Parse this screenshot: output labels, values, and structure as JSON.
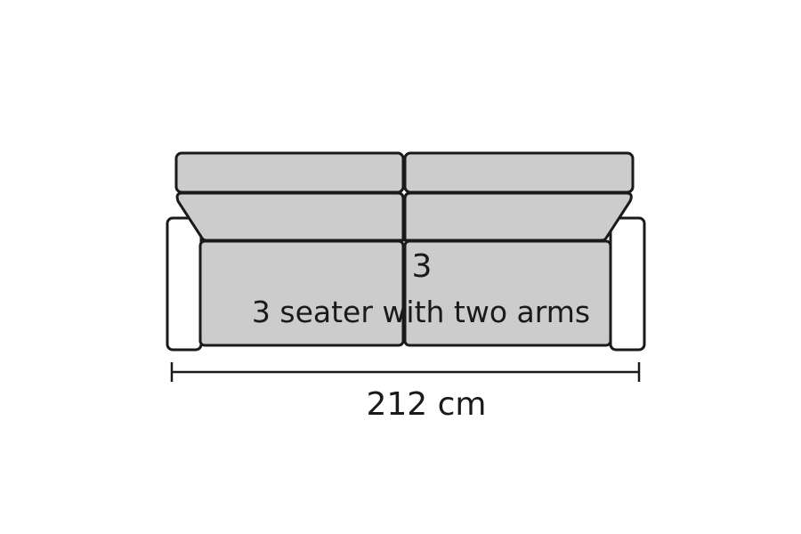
{
  "diagram": {
    "seat_count": "3",
    "description": "3 seater with two arms",
    "width_label": "212 cm"
  },
  "colors": {
    "cushion_fill": "#cccccc",
    "arm_fill": "#ffffff",
    "outline": "#1a1a1a",
    "text": "#1a1a1a"
  }
}
